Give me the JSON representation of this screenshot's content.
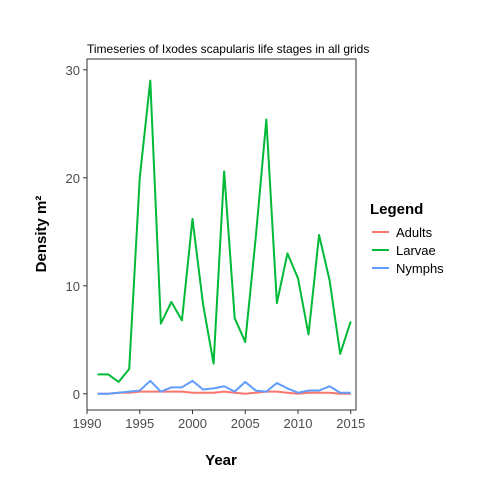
{
  "chart_data": {
    "type": "line",
    "title": "Timeseries of Ixodes scapularis life stages in all grids",
    "xlabel": "Year",
    "ylabel": "Density m²",
    "xlim": [
      1990,
      2015.5
    ],
    "ylim": [
      -1.5,
      31
    ],
    "xticks": [
      1990,
      1995,
      2000,
      2005,
      2010,
      2015
    ],
    "yticks": [
      0,
      10,
      20,
      30
    ],
    "grid": false,
    "legend": {
      "title": "Legend",
      "position": "right"
    },
    "x": [
      1991,
      1992,
      1993,
      1994,
      1995,
      1996,
      1997,
      1998,
      1999,
      2000,
      2001,
      2002,
      2003,
      2004,
      2005,
      2006,
      2007,
      2008,
      2009,
      2010,
      2011,
      2012,
      2013,
      2014,
      2015
    ],
    "series": [
      {
        "name": "Adults",
        "color": "#F8766D",
        "values": [
          0.0,
          0.0,
          0.1,
          0.1,
          0.2,
          0.2,
          0.2,
          0.2,
          0.2,
          0.1,
          0.1,
          0.1,
          0.2,
          0.1,
          0.0,
          0.1,
          0.2,
          0.2,
          0.1,
          0.0,
          0.1,
          0.1,
          0.1,
          0.0,
          0.0
        ]
      },
      {
        "name": "Larvae",
        "color": "#00BA38",
        "values": [
          1.8,
          1.8,
          1.1,
          2.3,
          20.0,
          29.0,
          6.5,
          8.5,
          6.8,
          16.2,
          8.3,
          2.8,
          20.6,
          7.0,
          4.8,
          14.5,
          25.4,
          8.4,
          13.0,
          10.7,
          5.5,
          14.7,
          10.5,
          3.7,
          6.7
        ]
      },
      {
        "name": "Nymphs",
        "color": "#619CFF",
        "values": [
          0.0,
          0.0,
          0.1,
          0.2,
          0.3,
          1.2,
          0.2,
          0.6,
          0.6,
          1.2,
          0.4,
          0.5,
          0.7,
          0.2,
          1.1,
          0.3,
          0.2,
          1.0,
          0.5,
          0.1,
          0.3,
          0.3,
          0.7,
          0.1,
          0.1
        ]
      }
    ]
  }
}
